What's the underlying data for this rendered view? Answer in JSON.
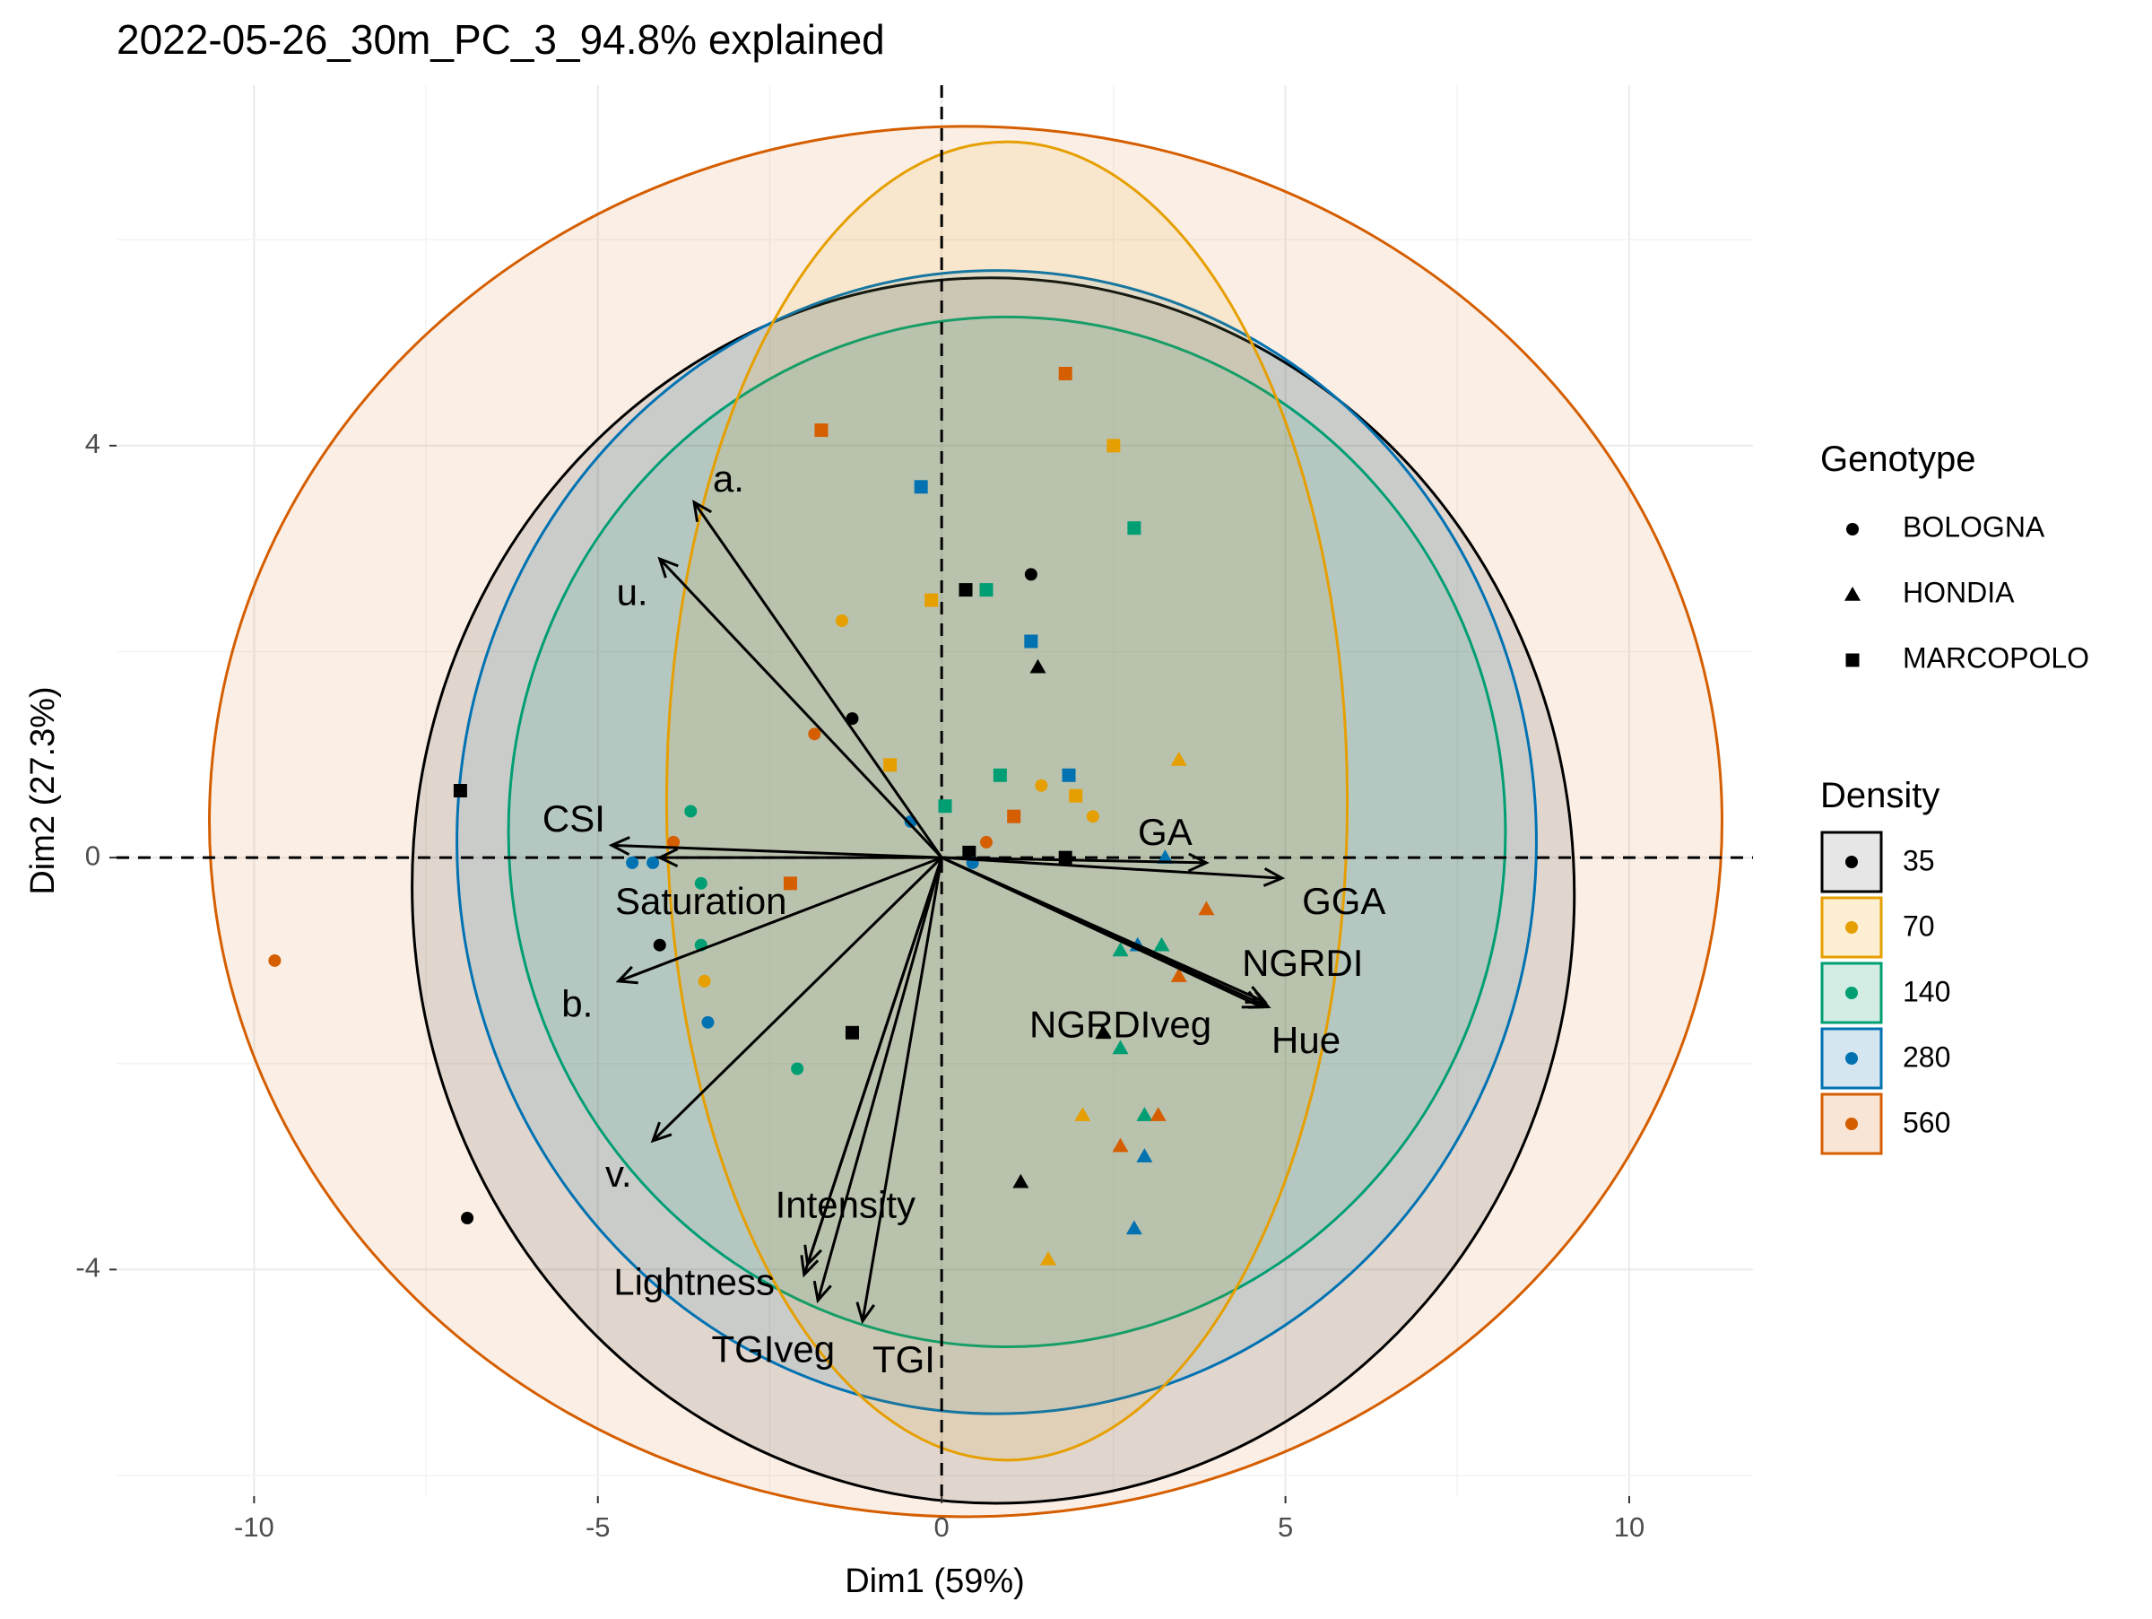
{
  "chart_data": {
    "type": "scatter",
    "title": "2022-05-26_30m_PC_3_94.8% explained",
    "xlabel": "Dim1 (59%)",
    "ylabel": "Dim2 (27.3%)",
    "xlim": [
      -12,
      11.8
    ],
    "ylim": [
      -6.2,
      7.5
    ],
    "x_ticks": [
      -10,
      -5,
      0,
      5,
      10
    ],
    "x_tick_labels": [
      "-10",
      "-5",
      "0",
      "5",
      "10"
    ],
    "y_ticks": [
      -4,
      0,
      4
    ],
    "y_tick_labels": [
      "-4",
      "0",
      "4"
    ],
    "grid": true,
    "reference_lines": {
      "x": 0,
      "y": 0,
      "style": "dashed"
    },
    "legend_placement": "right",
    "legends": {
      "genotype": {
        "title": "Genotype",
        "items": [
          {
            "label": "BOLOGNA",
            "shape": "circle"
          },
          {
            "label": "HONDIA",
            "shape": "triangle"
          },
          {
            "label": "MARCOPOLO",
            "shape": "square"
          }
        ]
      },
      "density": {
        "title": "Density",
        "items": [
          {
            "label": "35",
            "color": "#000000",
            "fill": "#e6e6e6"
          },
          {
            "label": "70",
            "color": "#E69F00",
            "fill": "#fcefd2"
          },
          {
            "label": "140",
            "color": "#009E73",
            "fill": "#d3ede5"
          },
          {
            "label": "280",
            "color": "#0072B2",
            "fill": "#d5e6f1"
          },
          {
            "label": "560",
            "color": "#D55E00",
            "fill": "#f9e5d6"
          }
        ]
      }
    },
    "ellipses": [
      {
        "density": "35",
        "cx": 0.75,
        "cy": -0.32,
        "rx": 8.45,
        "ry": 5.95,
        "angle": 3
      },
      {
        "density": "70",
        "cx": 0.95,
        "cy": 0.55,
        "rx": 4.95,
        "ry": 6.4,
        "angle": 0
      },
      {
        "density": "140",
        "cx": 0.95,
        "cy": 0.25,
        "rx": 7.25,
        "ry": 5.0,
        "angle": 0
      },
      {
        "density": "280",
        "cx": 0.8,
        "cy": 0.15,
        "rx": 7.85,
        "ry": 5.55,
        "angle": 0
      },
      {
        "density": "560",
        "cx": 0.35,
        "cy": 0.35,
        "rx": 11.0,
        "ry": 6.75,
        "angle": 0
      }
    ],
    "variables": [
      {
        "name": "a.",
        "x": -3.6,
        "y": 3.45,
        "label_x": -3.1,
        "label_y": 3.65
      },
      {
        "name": "u.",
        "x": -4.1,
        "y": 2.9,
        "label_x": -4.5,
        "label_y": 2.55
      },
      {
        "name": "CSI",
        "x": -4.8,
        "y": 0.12,
        "label_x": -5.35,
        "label_y": 0.35
      },
      {
        "name": "Saturation",
        "x": -4.1,
        "y": 0.0,
        "label_x": -3.5,
        "label_y": -0.45
      },
      {
        "name": "b.",
        "x": -4.7,
        "y": -1.2,
        "label_x": -5.3,
        "label_y": -1.45
      },
      {
        "name": "v.",
        "x": -4.2,
        "y": -2.75,
        "label_x": -4.7,
        "label_y": -3.1
      },
      {
        "name": "Intensity",
        "x": -1.95,
        "y": -3.95,
        "label_x": -1.4,
        "label_y": -3.4
      },
      {
        "name": "Lightness",
        "x": -2.0,
        "y": -4.05,
        "label_x": -3.6,
        "label_y": -4.15
      },
      {
        "name": "TGIveg",
        "x": -1.8,
        "y": -4.3,
        "label_x": -2.45,
        "label_y": -4.8
      },
      {
        "name": "TGI",
        "x": -1.15,
        "y": -4.5,
        "label_x": -0.55,
        "label_y": -4.9
      },
      {
        "name": "GA",
        "x": 3.85,
        "y": -0.05,
        "label_x": 3.25,
        "label_y": 0.22
      },
      {
        "name": "GGA",
        "x": 4.95,
        "y": -0.2,
        "label_x": 5.85,
        "label_y": -0.45
      },
      {
        "name": "NGRDI",
        "x": 4.7,
        "y": -1.4,
        "label_x": 5.25,
        "label_y": -1.05
      },
      {
        "name": "NGRDIveg",
        "x": 4.65,
        "y": -1.45,
        "label_x": 2.6,
        "label_y": -1.65
      },
      {
        "name": "Hue",
        "x": 4.75,
        "y": -1.45,
        "label_x": 5.3,
        "label_y": -1.8
      }
    ],
    "points": [
      {
        "x": -7.0,
        "y": 0.65,
        "density": "35",
        "genotype": "MARCOPOLO"
      },
      {
        "x": -6.9,
        "y": -3.5,
        "density": "35",
        "genotype": "BOLOGNA"
      },
      {
        "x": -4.1,
        "y": -0.85,
        "density": "35",
        "genotype": "BOLOGNA"
      },
      {
        "x": -1.3,
        "y": 1.35,
        "density": "35",
        "genotype": "BOLOGNA"
      },
      {
        "x": -1.3,
        "y": -1.7,
        "density": "35",
        "genotype": "MARCOPOLO"
      },
      {
        "x": 0.35,
        "y": 2.6,
        "density": "35",
        "genotype": "MARCOPOLO"
      },
      {
        "x": 0.4,
        "y": 0.05,
        "density": "35",
        "genotype": "MARCOPOLO"
      },
      {
        "x": 1.3,
        "y": 2.75,
        "density": "35",
        "genotype": "BOLOGNA"
      },
      {
        "x": 1.4,
        "y": 1.85,
        "density": "35",
        "genotype": "HONDIA"
      },
      {
        "x": 1.15,
        "y": -3.15,
        "density": "35",
        "genotype": "HONDIA"
      },
      {
        "x": 1.8,
        "y": 0.0,
        "density": "35",
        "genotype": "MARCOPOLO"
      },
      {
        "x": 2.35,
        "y": -1.7,
        "density": "35",
        "genotype": "HONDIA"
      },
      {
        "x": -1.45,
        "y": 2.3,
        "density": "70",
        "genotype": "BOLOGNA"
      },
      {
        "x": -0.75,
        "y": 0.9,
        "density": "70",
        "genotype": "MARCOPOLO"
      },
      {
        "x": -0.15,
        "y": 2.5,
        "density": "70",
        "genotype": "MARCOPOLO"
      },
      {
        "x": -3.45,
        "y": -1.2,
        "density": "70",
        "genotype": "BOLOGNA"
      },
      {
        "x": 1.45,
        "y": 0.7,
        "density": "70",
        "genotype": "BOLOGNA"
      },
      {
        "x": 1.95,
        "y": 0.6,
        "density": "70",
        "genotype": "MARCOPOLO"
      },
      {
        "x": 2.2,
        "y": 0.4,
        "density": "70",
        "genotype": "BOLOGNA"
      },
      {
        "x": 2.5,
        "y": 4.0,
        "density": "70",
        "genotype": "MARCOPOLO"
      },
      {
        "x": 3.45,
        "y": 0.95,
        "density": "70",
        "genotype": "HONDIA"
      },
      {
        "x": 2.05,
        "y": -2.5,
        "density": "70",
        "genotype": "HONDIA"
      },
      {
        "x": 1.55,
        "y": -3.9,
        "density": "70",
        "genotype": "HONDIA"
      },
      {
        "x": -3.65,
        "y": 0.45,
        "density": "140",
        "genotype": "BOLOGNA"
      },
      {
        "x": -3.5,
        "y": -0.25,
        "density": "140",
        "genotype": "BOLOGNA"
      },
      {
        "x": -3.5,
        "y": -0.85,
        "density": "140",
        "genotype": "BOLOGNA"
      },
      {
        "x": -2.1,
        "y": -2.05,
        "density": "140",
        "genotype": "BOLOGNA"
      },
      {
        "x": 0.05,
        "y": 0.5,
        "density": "140",
        "genotype": "MARCOPOLO"
      },
      {
        "x": 0.65,
        "y": 2.6,
        "density": "140",
        "genotype": "MARCOPOLO"
      },
      {
        "x": 0.85,
        "y": 0.8,
        "density": "140",
        "genotype": "MARCOPOLO"
      },
      {
        "x": 2.8,
        "y": 3.2,
        "density": "140",
        "genotype": "MARCOPOLO"
      },
      {
        "x": 2.6,
        "y": -0.9,
        "density": "140",
        "genotype": "HONDIA"
      },
      {
        "x": 3.2,
        "y": -0.85,
        "density": "140",
        "genotype": "HONDIA"
      },
      {
        "x": 2.6,
        "y": -1.85,
        "density": "140",
        "genotype": "HONDIA"
      },
      {
        "x": 2.95,
        "y": -2.5,
        "density": "140",
        "genotype": "HONDIA"
      },
      {
        "x": -4.5,
        "y": -0.05,
        "density": "280",
        "genotype": "BOLOGNA"
      },
      {
        "x": -4.2,
        "y": -0.05,
        "density": "280",
        "genotype": "BOLOGNA"
      },
      {
        "x": -3.4,
        "y": -1.6,
        "density": "280",
        "genotype": "BOLOGNA"
      },
      {
        "x": -0.45,
        "y": 0.35,
        "density": "280",
        "genotype": "BOLOGNA"
      },
      {
        "x": -0.3,
        "y": 3.6,
        "density": "280",
        "genotype": "MARCOPOLO"
      },
      {
        "x": 0.45,
        "y": -0.05,
        "density": "280",
        "genotype": "BOLOGNA"
      },
      {
        "x": 1.3,
        "y": 2.1,
        "density": "280",
        "genotype": "MARCOPOLO"
      },
      {
        "x": 1.85,
        "y": 0.8,
        "density": "280",
        "genotype": "MARCOPOLO"
      },
      {
        "x": 2.85,
        "y": -0.85,
        "density": "280",
        "genotype": "HONDIA"
      },
      {
        "x": 3.25,
        "y": 0.0,
        "density": "280",
        "genotype": "HONDIA"
      },
      {
        "x": 2.95,
        "y": -2.9,
        "density": "280",
        "genotype": "HONDIA"
      },
      {
        "x": 2.8,
        "y": -3.6,
        "density": "280",
        "genotype": "HONDIA"
      },
      {
        "x": -9.7,
        "y": -1.0,
        "density": "560",
        "genotype": "BOLOGNA"
      },
      {
        "x": -3.9,
        "y": 0.15,
        "density": "560",
        "genotype": "BOLOGNA"
      },
      {
        "x": -2.2,
        "y": -0.25,
        "density": "560",
        "genotype": "MARCOPOLO"
      },
      {
        "x": -1.85,
        "y": 1.2,
        "density": "560",
        "genotype": "BOLOGNA"
      },
      {
        "x": -1.75,
        "y": 4.15,
        "density": "560",
        "genotype": "MARCOPOLO"
      },
      {
        "x": 0.65,
        "y": 0.15,
        "density": "560",
        "genotype": "BOLOGNA"
      },
      {
        "x": 1.05,
        "y": 0.4,
        "density": "560",
        "genotype": "MARCOPOLO"
      },
      {
        "x": 1.8,
        "y": 4.7,
        "density": "560",
        "genotype": "MARCOPOLO"
      },
      {
        "x": 3.15,
        "y": -2.5,
        "density": "560",
        "genotype": "HONDIA"
      },
      {
        "x": 3.85,
        "y": -0.5,
        "density": "560",
        "genotype": "HONDIA"
      },
      {
        "x": 3.45,
        "y": -1.15,
        "density": "560",
        "genotype": "HONDIA"
      },
      {
        "x": 2.6,
        "y": -2.8,
        "density": "560",
        "genotype": "HONDIA"
      }
    ]
  }
}
